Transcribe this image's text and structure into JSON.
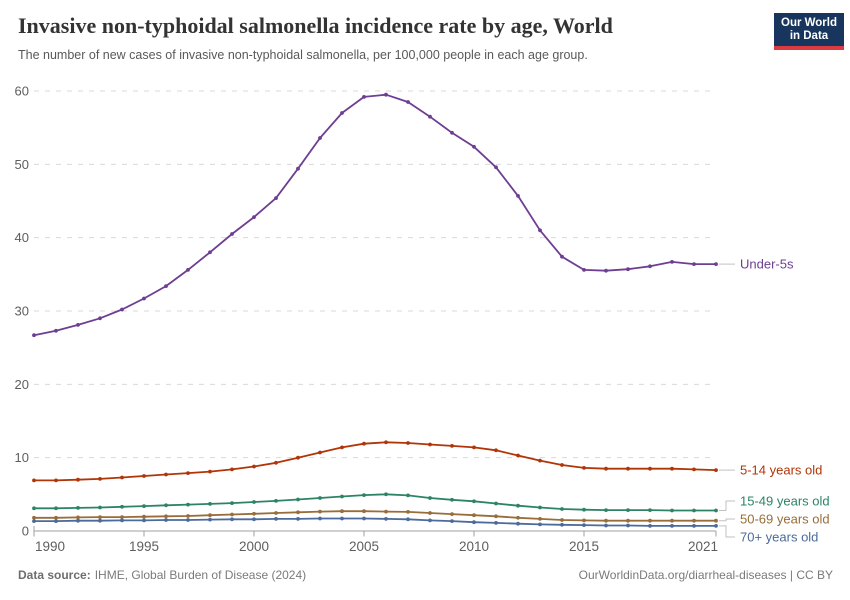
{
  "header": {
    "title": "Invasive non-typhoidal salmonella incidence rate by age, World",
    "subtitle": "The number of new cases of invasive non-typhoidal salmonella, per 100,000 people in each age group."
  },
  "logo": {
    "line1": "Our World",
    "line2": "in Data",
    "bg_color": "#18365D",
    "accent_color": "#DC3A41"
  },
  "footer": {
    "source_label": "Data source:",
    "source_text": "IHME, Global Burden of Disease (2024)",
    "credit": "OurWorldinData.org/diarrheal-diseases | CC BY"
  },
  "chart_data": {
    "type": "line",
    "title": "Invasive non-typhoidal salmonella incidence rate by age, World",
    "xlabel": "",
    "ylabel": "",
    "ylim": [
      0,
      60
    ],
    "yticks": [
      0,
      10,
      20,
      30,
      40,
      50,
      60
    ],
    "xticks": [
      1990,
      1995,
      2000,
      2005,
      2010,
      2015,
      2021
    ],
    "grid": "horizontal-dashed",
    "legend_position": "right-end-labels",
    "x": [
      1990,
      1991,
      1992,
      1993,
      1994,
      1995,
      1996,
      1997,
      1998,
      1999,
      2000,
      2001,
      2002,
      2003,
      2004,
      2005,
      2006,
      2007,
      2008,
      2009,
      2010,
      2011,
      2012,
      2013,
      2014,
      2015,
      2016,
      2017,
      2018,
      2019,
      2020,
      2021
    ],
    "series": [
      {
        "name": "Under-5s",
        "color": "#6D3E91",
        "values": [
          26.7,
          27.3,
          28.1,
          29.0,
          30.2,
          31.7,
          33.4,
          35.6,
          38.0,
          40.5,
          42.8,
          45.4,
          49.4,
          53.6,
          57.0,
          59.2,
          59.5,
          58.5,
          56.5,
          54.3,
          52.4,
          49.6,
          45.7,
          41.0,
          37.4,
          35.6,
          35.5,
          35.7,
          36.1,
          36.7,
          36.4,
          36.4
        ]
      },
      {
        "name": "5-14 years old",
        "color": "#B13507",
        "values": [
          6.9,
          6.9,
          7.0,
          7.1,
          7.3,
          7.5,
          7.7,
          7.9,
          8.1,
          8.4,
          8.8,
          9.3,
          10.0,
          10.7,
          11.4,
          11.9,
          12.1,
          12.0,
          11.8,
          11.6,
          11.4,
          11.0,
          10.3,
          9.6,
          9.0,
          8.6,
          8.5,
          8.5,
          8.5,
          8.5,
          8.4,
          8.3
        ]
      },
      {
        "name": "15-49 years old",
        "color": "#2C8465",
        "values": [
          3.1,
          3.1,
          3.15,
          3.2,
          3.3,
          3.4,
          3.5,
          3.6,
          3.7,
          3.8,
          3.95,
          4.1,
          4.3,
          4.5,
          4.7,
          4.9,
          5.0,
          4.85,
          4.5,
          4.25,
          4.05,
          3.75,
          3.45,
          3.2,
          3.0,
          2.9,
          2.85,
          2.85,
          2.85,
          2.8,
          2.8,
          2.8
        ]
      },
      {
        "name": "50-69 years old",
        "color": "#996D39",
        "values": [
          1.8,
          1.8,
          1.85,
          1.9,
          1.9,
          1.95,
          2.0,
          2.05,
          2.15,
          2.25,
          2.35,
          2.45,
          2.55,
          2.65,
          2.7,
          2.7,
          2.65,
          2.6,
          2.45,
          2.3,
          2.15,
          2.0,
          1.8,
          1.65,
          1.5,
          1.45,
          1.4,
          1.4,
          1.4,
          1.4,
          1.4,
          1.4
        ]
      },
      {
        "name": "70+ years old",
        "color": "#4C6A9C",
        "values": [
          1.35,
          1.35,
          1.4,
          1.4,
          1.45,
          1.45,
          1.5,
          1.5,
          1.55,
          1.6,
          1.6,
          1.65,
          1.65,
          1.7,
          1.7,
          1.7,
          1.65,
          1.6,
          1.45,
          1.35,
          1.2,
          1.1,
          1.0,
          0.9,
          0.85,
          0.8,
          0.75,
          0.75,
          0.7,
          0.7,
          0.7,
          0.7
        ]
      }
    ],
    "colors": {
      "grid": "#d9d9d9",
      "axis": "#a1a1a1",
      "tick_text": "#5e5e5e",
      "connector": "#c2c2c2"
    }
  }
}
